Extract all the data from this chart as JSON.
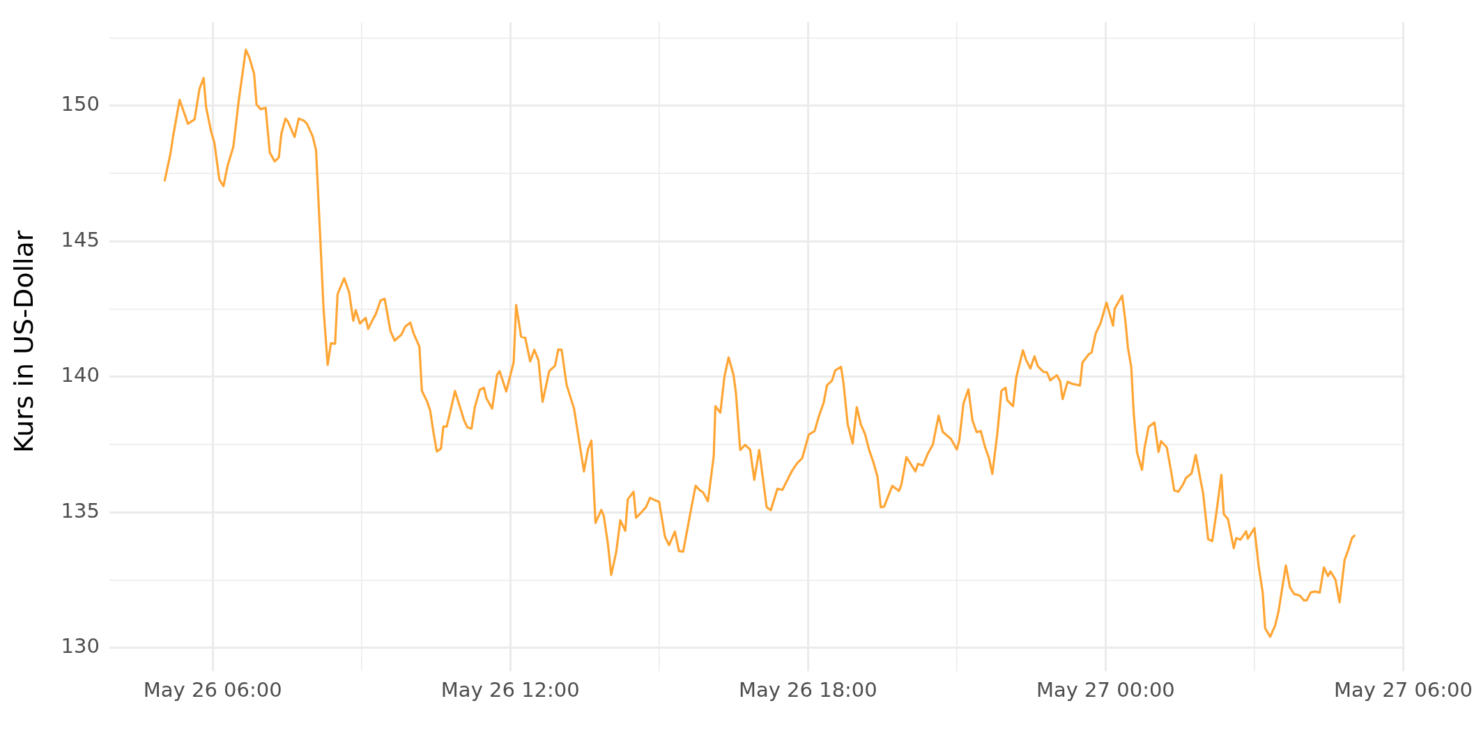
{
  "chart_data": {
    "type": "line",
    "ylabel": "Kurs in US-Dollar",
    "color": "#ffa534",
    "grid": true,
    "xlim": [
      "--05-26T03:55",
      "--05-27T06:02"
    ],
    "xticks": [
      {
        "value": "--05-26T06:00",
        "label": "May 26 06:00"
      },
      {
        "value": "--05-26T09:00",
        "label": null
      },
      {
        "value": "--05-26T12:00",
        "label": "May 26 12:00"
      },
      {
        "value": "--05-26T15:00",
        "label": null
      },
      {
        "value": "--05-26T18:00",
        "label": "May 26 18:00"
      },
      {
        "value": "--05-26T21:00",
        "label": null
      },
      {
        "value": "--05-27T00:00",
        "label": "May 27 00:00"
      },
      {
        "value": "--05-27T03:00",
        "label": null
      },
      {
        "value": "--05-27T06:00",
        "label": "May 27 06:00"
      }
    ],
    "ylim": [
      129.5,
      153.1
    ],
    "yticks": [
      130,
      {
        "value": 132.5,
        "label": null
      },
      135,
      {
        "value": 137.5,
        "label": null
      },
      140,
      {
        "value": 142.5,
        "label": null
      },
      145,
      {
        "value": 147.5,
        "label": null
      },
      150,
      {
        "value": 152.5,
        "label": null
      }
    ],
    "x": [
      "--05-26T05:02",
      "--05-26T05:09",
      "--05-26T05:12",
      "--05-26T05:20",
      "--05-26T05:30",
      "--05-26T05:38",
      "--05-26T05:44",
      "--05-26T05:49",
      "--05-26T05:52",
      "--05-26T05:58",
      "--05-26T06:02",
      "--05-26T06:08",
      "--05-26T06:13",
      "--05-26T06:18",
      "--05-26T06:25",
      "--05-26T06:31",
      "--05-26T06:40",
      "--05-26T06:44",
      "--05-26T06:50",
      "--05-26T06:53",
      "--05-26T06:58",
      "--05-26T07:04",
      "--05-26T07:09",
      "--05-26T07:15",
      "--05-26T07:20",
      "--05-26T07:23",
      "--05-26T07:28",
      "--05-26T07:31",
      "--05-26T07:39",
      "--05-26T07:44",
      "--05-26T07:50",
      "--05-26T07:54",
      "--05-26T08:01",
      "--05-26T08:05",
      "--05-26T08:10",
      "--05-26T08:14",
      "--05-26T08:19",
      "--05-26T08:23",
      "--05-26T08:28",
      "--05-26T08:31",
      "--05-26T08:39",
      "--05-26T08:45",
      "--05-26T08:50",
      "--05-26T08:53",
      "--05-26T08:58",
      "--05-26T09:05",
      "--05-26T09:08",
      "--05-26T09:14",
      "--05-26T09:17",
      "--05-26T09:23",
      "--05-26T09:28",
      "--05-26T09:35",
      "--05-26T09:40",
      "--05-26T09:48",
      "--05-26T09:53",
      "--05-26T09:59",
      "--05-26T10:03",
      "--05-26T10:10",
      "--05-26T10:13",
      "--05-26T10:19",
      "--05-26T10:23",
      "--05-26T10:27",
      "--05-26T10:31",
      "--05-26T10:36",
      "--05-26T10:39",
      "--05-26T10:43",
      "--05-26T10:48",
      "--05-26T10:53",
      "--05-26T11:04",
      "--05-26T11:08",
      "--05-26T11:13",
      "--05-26T11:17",
      "--05-26T11:23",
      "--05-26T11:28",
      "--05-26T11:31",
      "--05-26T11:38",
      "--05-26T11:44",
      "--05-26T11:47",
      "--05-26T11:55",
      "--05-26T12:04",
      "--05-26T12:07",
      "--05-26T12:13",
      "--05-26T12:18",
      "--05-26T12:24",
      "--05-26T12:29",
      "--05-26T12:34",
      "--05-26T12:39",
      "--05-26T12:47",
      "--05-26T12:54",
      "--05-26T12:58",
      "--05-26T13:02",
      "--05-26T13:08",
      "--05-26T13:17",
      "--05-26T13:29",
      "--05-26T13:34",
      "--05-26T13:38",
      "--05-26T13:43",
      "--05-26T13:50",
      "--05-26T13:53",
      "--05-26T13:58",
      "--05-26T14:02",
      "--05-26T14:08",
      "--05-26T14:13",
      "--05-26T14:19",
      "--05-26T14:22",
      "--05-26T14:29",
      "--05-26T14:32",
      "--05-26T14:39",
      "--05-26T14:44",
      "--05-26T14:49",
      "--05-26T14:54",
      "--05-26T15:00",
      "--05-26T15:07",
      "--05-26T15:12",
      "--05-26T15:19",
      "--05-26T15:24",
      "--05-26T15:29",
      "--05-26T15:38",
      "--05-26T15:44",
      "--05-26T15:49",
      "--05-26T15:53",
      "--05-26T15:59",
      "--05-26T16:06",
      "--05-26T16:08",
      "--05-26T16:14",
      "--05-26T16:19",
      "--05-26T16:24",
      "--05-26T16:30",
      "--05-26T16:33",
      "--05-26T16:38",
      "--05-26T16:44",
      "--05-26T16:50",
      "--05-26T16:55",
      "--05-26T17:01",
      "--05-26T17:10",
      "--05-26T17:15",
      "--05-26T17:23",
      "--05-26T17:29",
      "--05-26T17:41",
      "--05-26T17:47",
      "--05-26T17:53",
      "--05-26T18:01",
      "--05-26T18:08",
      "--05-26T18:13",
      "--05-26T18:19",
      "--05-26T18:23",
      "--05-26T18:29",
      "--05-26T18:33",
      "--05-26T18:40",
      "--05-26T18:43",
      "--05-26T18:48",
      "--05-26T18:54",
      "--05-26T18:59",
      "--05-26T19:04",
      "--05-26T19:09",
      "--05-26T19:14",
      "--05-26T19:19",
      "--05-26T19:24",
      "--05-26T19:28",
      "--05-26T19:32",
      "--05-26T19:42",
      "--05-26T19:50",
      "--05-26T19:53",
      "--05-26T19:59",
      "--05-26T20:10",
      "--05-26T20:13",
      "--05-26T20:19",
      "--05-26T20:25",
      "--05-26T20:31",
      "--05-26T20:38",
      "--05-26T20:43",
      "--05-26T20:53",
      "--05-26T21:00",
      "--05-26T21:03",
      "--05-26T21:08",
      "--05-26T21:14",
      "--05-26T21:19",
      "--05-26T21:24",
      "--05-26T21:29",
      "--05-26T21:34",
      "--05-26T21:39",
      "--05-26T21:43",
      "--05-26T21:49",
      "--05-26T21:54",
      "--05-26T21:59",
      "--05-26T22:01",
      "--05-26T22:08",
      "--05-26T22:12",
      "--05-26T22:20",
      "--05-26T22:24",
      "--05-26T22:29",
      "--05-26T22:34",
      "--05-26T22:38",
      "--05-26T22:45",
      "--05-26T22:49",
      "--05-26T22:53",
      "--05-26T23:01",
      "--05-26T23:05",
      "--05-26T23:08",
      "--05-26T23:14",
      "--05-26T23:19",
      "--05-26T23:29",
      "--05-26T23:32",
      "--05-26T23:40",
      "--05-26T23:43",
      "--05-26T23:48",
      "--05-26T23:54",
      "--05-27T00:01",
      "--05-27T00:09",
      "--05-27T00:11",
      "--05-27T00:20",
      "--05-27T00:24",
      "--05-27T00:27",
      "--05-27T00:31",
      "--05-27T00:34",
      "--05-27T00:38",
      "--05-27T00:44",
      "--05-27T00:47",
      "--05-27T00:52",
      "--05-27T00:59",
      "--05-27T01:04",
      "--05-27T01:07",
      "--05-27T01:14",
      "--05-27T01:19",
      "--05-27T01:23",
      "--05-27T01:28",
      "--05-27T01:34",
      "--05-27T01:37",
      "--05-27T01:44",
      "--05-27T01:49",
      "--05-27T01:58",
      "--05-27T02:04",
      "--05-27T02:09",
      "--05-27T02:14",
      "--05-27T02:20",
      "--05-27T02:23",
      "--05-27T02:28",
      "--05-27T02:35",
      "--05-27T02:38",
      "--05-27T02:43",
      "--05-27T02:50",
      "--05-27T02:52",
      "--05-27T03:00",
      "--05-27T03:05",
      "--05-27T03:10",
      "--05-27T03:13",
      "--05-27T03:19",
      "--05-27T03:25",
      "--05-27T03:29",
      "--05-27T03:38",
      "--05-27T03:43",
      "--05-27T03:48",
      "--05-27T03:55",
      "--05-27T04:00",
      "--05-27T04:03",
      "--05-27T04:08",
      "--05-27T04:13",
      "--05-27T04:19",
      "--05-27T04:24",
      "--05-27T04:29",
      "--05-27T04:32",
      "--05-27T04:38",
      "--05-27T04:43",
      "--05-27T04:49",
      "--05-27T04:53",
      "--05-27T04:58",
      "--05-27T05:01"
    ],
    "values": [
      147.25,
      148.26,
      148.87,
      150.22,
      149.34,
      149.5,
      150.63,
      151.03,
      149.95,
      149.06,
      148.64,
      147.28,
      147.04,
      147.79,
      148.5,
      150.09,
      152.07,
      151.81,
      151.19,
      150.05,
      149.88,
      149.93,
      148.28,
      147.95,
      148.1,
      148.97,
      149.53,
      149.42,
      148.85,
      149.53,
      149.46,
      149.34,
      148.87,
      148.36,
      145.16,
      142.54,
      140.44,
      141.24,
      141.22,
      143.05,
      143.64,
      143.12,
      142.07,
      142.46,
      141.97,
      142.18,
      141.77,
      142.14,
      142.3,
      142.82,
      142.88,
      141.69,
      141.34,
      141.55,
      141.86,
      142.0,
      141.6,
      141.11,
      139.48,
      139.11,
      138.76,
      137.95,
      137.25,
      137.35,
      138.17,
      138.17,
      138.8,
      139.48,
      138.4,
      138.14,
      138.09,
      138.88,
      139.52,
      139.6,
      139.21,
      138.83,
      140.08,
      140.21,
      139.46,
      140.54,
      142.65,
      141.48,
      141.44,
      140.57,
      141.0,
      140.61,
      139.08,
      140.21,
      140.41,
      141.01,
      141.0,
      139.71,
      138.83,
      136.51,
      137.34,
      137.65,
      134.61,
      135.09,
      134.87,
      133.83,
      132.69,
      133.53,
      134.71,
      134.32,
      135.48,
      135.76,
      134.8,
      135.02,
      135.19,
      135.54,
      135.46,
      135.39,
      134.1,
      133.79,
      134.29,
      133.57,
      133.55,
      135.02,
      135.98,
      135.82,
      135.74,
      135.41,
      137.08,
      138.92,
      138.68,
      140.02,
      140.72,
      140.06,
      139.36,
      137.3,
      137.49,
      137.32,
      136.2,
      137.3,
      135.19,
      135.08,
      135.87,
      135.83,
      136.55,
      136.82,
      137.0,
      137.87,
      138.0,
      138.53,
      139.05,
      139.69,
      139.86,
      140.24,
      140.37,
      139.75,
      138.26,
      137.54,
      138.88,
      138.24,
      137.89,
      137.3,
      136.86,
      136.33,
      135.19,
      135.21,
      135.98,
      135.79,
      136.03,
      137.04,
      136.51,
      136.79,
      136.73,
      137.17,
      137.5,
      138.57,
      137.97,
      137.71,
      137.32,
      137.65,
      139.01,
      139.54,
      138.39,
      137.96,
      138.0,
      137.43,
      136.99,
      136.42,
      137.91,
      139.49,
      139.6,
      139.14,
      138.92,
      139.99,
      140.98,
      140.61,
      140.31,
      140.76,
      140.39,
      140.18,
      140.17,
      139.87,
      140.06,
      139.84,
      139.18,
      139.82,
      139.75,
      139.68,
      140.53,
      140.85,
      140.89,
      141.6,
      141.99,
      142.74,
      141.89,
      142.52,
      143.0,
      142.04,
      141.07,
      140.37,
      138.66,
      137.21,
      136.57,
      137.36,
      138.15,
      138.32,
      137.23,
      137.63,
      137.4,
      136.55,
      135.81,
      135.76,
      136.05,
      136.26,
      136.44,
      137.12,
      135.69,
      134.01,
      133.94,
      134.99,
      136.38,
      134.93,
      134.75,
      133.68,
      134.05,
      133.99,
      134.3,
      134.03,
      134.42,
      133.04,
      132.04,
      130.72,
      130.41,
      130.82,
      131.32,
      133.04,
      132.23,
      131.99,
      131.93,
      131.75,
      131.75,
      132.04,
      132.08,
      132.04,
      132.97,
      132.65,
      132.82,
      132.52,
      131.68,
      133.24,
      133.57,
      134.05,
      134.14
    ]
  }
}
